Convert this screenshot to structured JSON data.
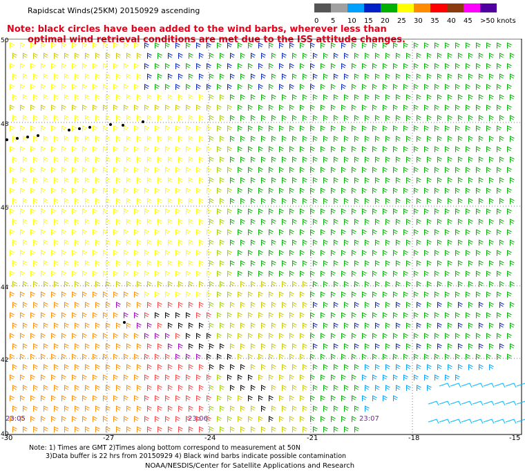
{
  "title": "Rapidscat Winds(25KM) 20150929 ascending",
  "note_line1": "Note: black circles have been added to the wind barbs, wherever less than",
  "note_line2": "optimal wind retrieval conditions are met due to the ISS attitude changes.",
  "scale": {
    "labels": [
      "0",
      "5",
      "10",
      "15",
      "20",
      "25",
      "30",
      "35",
      "40",
      "45",
      ">50 knots"
    ],
    "colors": [
      "#555555",
      "#a0a0a0",
      "#00a0ff",
      "#0020c8",
      "#00b000",
      "#ffff00",
      "#ff8c00",
      "#ff0000",
      "#8b3a0f",
      "#ff00ff",
      "#5000a0"
    ]
  },
  "lat_labels": [
    "50",
    "48",
    "46",
    "44",
    "42",
    "40"
  ],
  "lon_labels": [
    "-30",
    "-27",
    "-24",
    "-21",
    "-18",
    "-15"
  ],
  "time_labels": [
    "23:05",
    "23:06",
    "23:07"
  ],
  "footer_line1": "Note: 1) Times are GMT 2)Times along bottom correspond to measurement at 50N",
  "footer_line2": "3)Data buffer is 22 hrs from 20150929 4) Black wind barbs indicate possible contamination",
  "credit": "NOAA/NESDIS/Center for Satellite Applications and Research"
}
